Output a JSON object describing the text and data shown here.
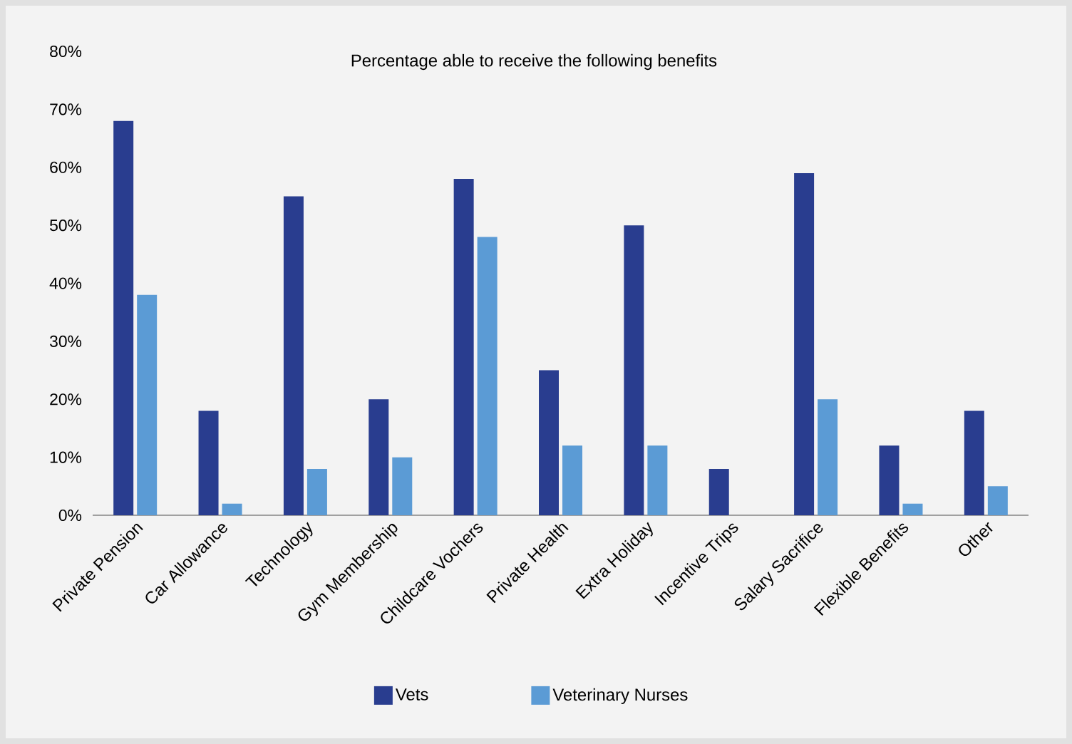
{
  "chart_data": {
    "type": "bar",
    "title": "Percentage able to receive the following benefits",
    "categories": [
      "Private Pension",
      "Car Allowance",
      "Technology",
      "Gym Membership",
      "Childcare Vochers",
      "Private Health",
      "Extra Holiday",
      "Incentive Trips",
      "Salary Sacrifice",
      "Flexible Benefits",
      "Other"
    ],
    "series": [
      {
        "name": "Vets",
        "color": "#293d8f",
        "values": [
          68,
          18,
          55,
          20,
          58,
          25,
          50,
          8,
          59,
          12,
          18
        ]
      },
      {
        "name": "Veterinary Nurses",
        "color": "#5b9bd5",
        "values": [
          38,
          2,
          8,
          10,
          48,
          12,
          12,
          0,
          20,
          2,
          5
        ]
      }
    ],
    "ylim": [
      0,
      80
    ],
    "yticks": [
      {
        "value": 0,
        "label": "0%"
      },
      {
        "value": 10,
        "label": "10%"
      },
      {
        "value": 20,
        "label": "20%"
      },
      {
        "value": 30,
        "label": "30%"
      },
      {
        "value": 40,
        "label": "40%"
      },
      {
        "value": 50,
        "label": "50%"
      },
      {
        "value": 60,
        "label": "60%"
      },
      {
        "value": 70,
        "label": "70%"
      },
      {
        "value": 80,
        "label": "80%"
      }
    ],
    "legend": "bottom"
  }
}
